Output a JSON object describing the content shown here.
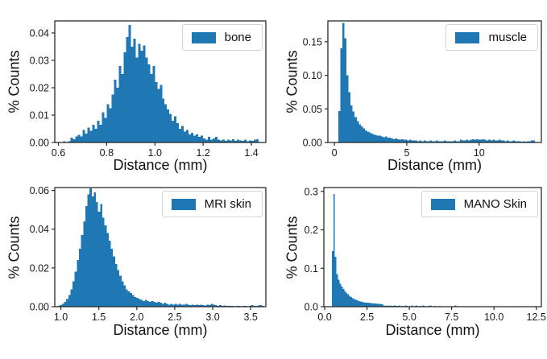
{
  "figure": {
    "background": "#ffffff",
    "bar_color": "#1f77b4",
    "axis_color": "#2b2b2b",
    "text_color": "#1a1a1a",
    "legend_border_color": "#d4d4d4"
  },
  "chart_data": [
    {
      "type": "bar",
      "series": "bone",
      "xlabel": "Distance (mm)",
      "ylabel": "% Counts",
      "legend_position": "upper right",
      "grid": false,
      "xlim": [
        0.585,
        1.46
      ],
      "ylim": [
        0,
        0.0444
      ],
      "xticks": [
        0.6,
        0.8,
        1.0,
        1.2,
        1.4
      ],
      "xtick_labels": [
        "0.6",
        "0.8",
        "1.0",
        "1.2",
        "1.4"
      ],
      "yticks": [
        0,
        0.01,
        0.02,
        0.03,
        0.04
      ],
      "ytick_labels": [
        "0.00",
        "0.01",
        "0.02",
        "0.03",
        "0.04"
      ],
      "bin_start": 0.62,
      "bin_width": 0.01,
      "bin_heights_scale": 0.001,
      "bin_heights": [
        0.4,
        0.2,
        0.5,
        1.8,
        1.2,
        2.2,
        2.8,
        2.2,
        4.5,
        3.2,
        5.5,
        4.2,
        6.5,
        5,
        8,
        6.5,
        11,
        9,
        14,
        12.5,
        17.5,
        23,
        20,
        28,
        25,
        33,
        38.5,
        43,
        35,
        38,
        31,
        36,
        33.5,
        35.5,
        31,
        28.5,
        25,
        28,
        22,
        19.5,
        21,
        16,
        14,
        12,
        10.5,
        8,
        9.5,
        7,
        5,
        6,
        4,
        4.5,
        3,
        3.5,
        2.5,
        3,
        2,
        2.5,
        1.5,
        1,
        2,
        1,
        1.5,
        2,
        1,
        0.8,
        1,
        0.6,
        1,
        0.8,
        1.2,
        0.6,
        1,
        0.8,
        0.6,
        1,
        0.5,
        0.8,
        0.6,
        1,
        1.2
      ]
    },
    {
      "type": "bar",
      "series": "muscle",
      "xlabel": "Distance (mm)",
      "ylabel": "% Counts",
      "legend_position": "upper right",
      "grid": false,
      "xlim": [
        -0.45,
        14.3
      ],
      "ylim": [
        0,
        0.181
      ],
      "xticks": [
        0,
        5,
        10
      ],
      "xtick_labels": [
        "0",
        "5",
        "10"
      ],
      "yticks": [
        0,
        0.05,
        0.1,
        0.15
      ],
      "ytick_labels": [
        "0.00",
        "0.05",
        "0.10",
        "0.15"
      ],
      "bin_start": 0.28,
      "bin_width": 0.14,
      "bin_heights_scale": 0.001,
      "bin_heights": [
        47,
        140,
        178,
        155,
        100,
        75,
        55,
        46,
        38,
        32,
        27,
        24,
        21,
        18,
        16,
        15,
        13,
        12,
        11,
        10,
        10,
        9,
        8,
        9,
        7,
        7,
        6,
        5,
        6,
        5,
        4,
        5,
        4,
        4,
        3,
        4,
        3,
        3,
        3,
        2,
        3,
        2,
        3,
        2,
        2,
        3,
        2,
        2,
        3,
        2,
        2,
        2,
        3,
        2,
        2,
        2,
        2,
        3,
        2,
        2,
        4,
        3,
        3,
        4,
        3,
        4,
        5,
        4,
        5,
        4,
        4,
        5,
        4,
        3,
        4,
        3,
        4,
        3,
        3,
        4,
        3,
        3,
        2,
        3,
        2,
        2,
        3,
        2,
        2,
        2,
        1,
        2,
        1,
        2,
        2,
        3,
        3
      ]
    },
    {
      "type": "bar",
      "series": "MRI skin",
      "xlabel": "Distance (mm)",
      "ylabel": "% Counts",
      "legend_position": "upper right",
      "grid": false,
      "xlim": [
        0.92,
        3.7
      ],
      "ylim": [
        0,
        0.0615
      ],
      "xticks": [
        1.0,
        1.5,
        2.0,
        2.5,
        3.0,
        3.5
      ],
      "xtick_labels": [
        "1.0",
        "1.5",
        "2.0",
        "2.5",
        "3.0",
        "3.5"
      ],
      "yticks": [
        0,
        0.02,
        0.04,
        0.06
      ],
      "ytick_labels": [
        "0.00",
        "0.02",
        "0.04",
        "0.06"
      ],
      "bin_start": 0.93,
      "bin_width": 0.028,
      "bin_heights_scale": 0.001,
      "bin_heights": [
        0.3,
        0.5,
        0.8,
        1.5,
        2.5,
        4,
        6,
        9,
        13,
        18,
        24,
        30,
        37,
        44,
        52,
        58,
        61,
        57,
        59,
        54,
        49,
        53,
        46,
        42,
        38,
        34,
        30,
        26,
        22,
        19,
        16,
        13,
        11,
        9,
        8,
        7,
        6,
        5,
        4.5,
        4,
        3.5,
        3,
        3.5,
        3,
        2.5,
        3,
        2.5,
        2,
        2.5,
        2,
        1.5,
        2,
        1.5,
        1,
        1.5,
        1,
        1.5,
        1,
        1.5,
        1,
        1,
        1.5,
        1,
        0.8,
        1,
        0.8,
        1,
        0.8,
        1,
        0.8,
        0.6,
        1,
        0.8,
        1.5,
        1,
        0.8,
        0.5,
        0.8,
        0.5,
        0.6,
        0.5,
        0.4,
        0.5,
        0.4,
        0.3,
        0.5,
        0.4,
        0.3,
        0.4,
        0.5,
        0.3,
        0.4,
        0.8,
        0.5,
        0.4,
        0.6,
        0.8,
        0.5
      ]
    },
    {
      "type": "bar",
      "series": "MANO Skin",
      "xlabel": "Distance (mm)",
      "ylabel": "% Counts",
      "legend_position": "upper right",
      "grid": false,
      "xlim": [
        -0.05,
        12.8
      ],
      "ylim": [
        0,
        0.31
      ],
      "xticks": [
        0,
        2.5,
        5,
        7.5,
        10,
        12.5
      ],
      "xtick_labels": [
        "0.0",
        "2.5",
        "5.0",
        "7.5",
        "10.0",
        "12.5"
      ],
      "yticks": [
        0,
        0.1,
        0.2,
        0.3
      ],
      "ytick_labels": [
        "0.0",
        "0.1",
        "0.2",
        "0.3"
      ],
      "bin_start": 0.42,
      "bin_width": 0.092,
      "bin_heights_scale": 0.001,
      "bin_heights": [
        145,
        293,
        130,
        85,
        70,
        60,
        52,
        46,
        40,
        36,
        32,
        28,
        25,
        22,
        20,
        18,
        17,
        15,
        14,
        13,
        12,
        11,
        10,
        10,
        9,
        9,
        8,
        8,
        8,
        7,
        7,
        7,
        6,
        3,
        2,
        3,
        2,
        3,
        2,
        2,
        3,
        2,
        2,
        3,
        0,
        2,
        0,
        3,
        2,
        0,
        0,
        3,
        0,
        2,
        3,
        0,
        2,
        0,
        3,
        2,
        0,
        0,
        2,
        3,
        0,
        0,
        2,
        0,
        0,
        2,
        0,
        0,
        0,
        0,
        0,
        0,
        0,
        0,
        0,
        3
      ]
    }
  ]
}
